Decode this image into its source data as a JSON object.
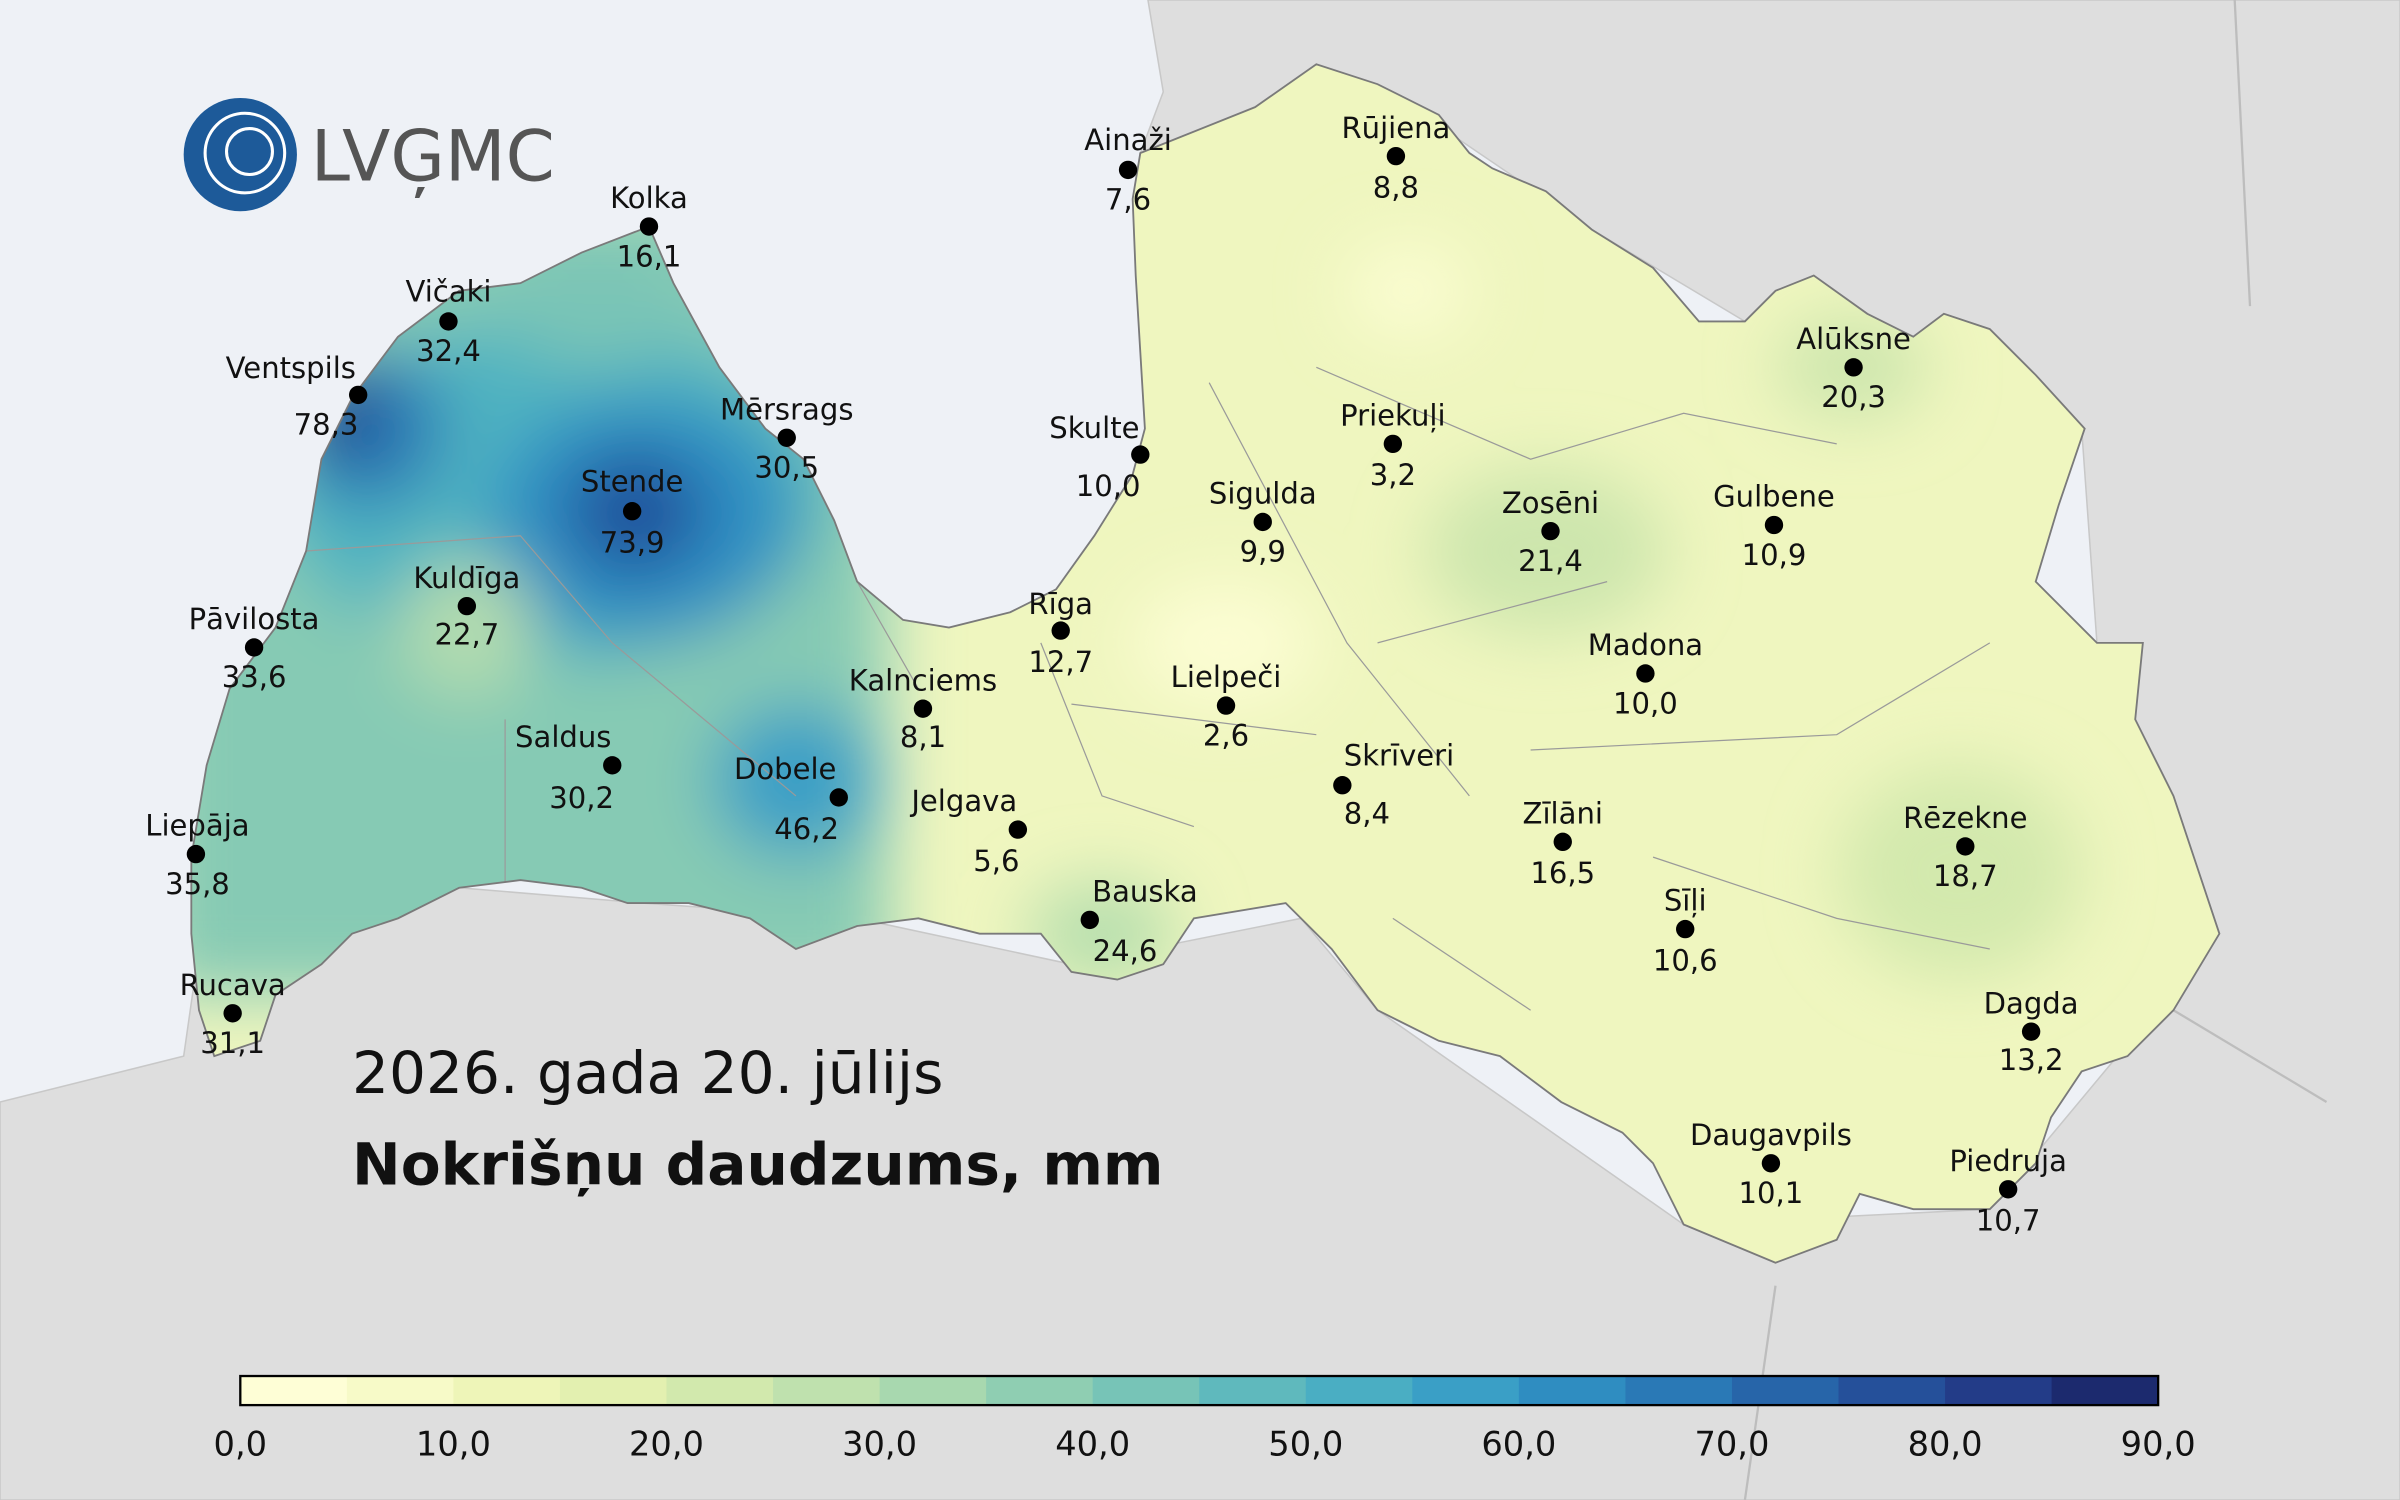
{
  "logo": {
    "text": "LVĢMC"
  },
  "title": "2026. gada 20. jūlijs",
  "subtitle": "Nokrišņu daudzums, mm",
  "stations": [
    {
      "name": "Kolka",
      "value": "16,1"
    },
    {
      "name": "Vičaki",
      "value": "32,4"
    },
    {
      "name": "Ventspils",
      "value": "78,3"
    },
    {
      "name": "Mērsrags",
      "value": "30,5"
    },
    {
      "name": "Stende",
      "value": "73,9"
    },
    {
      "name": "Kuldīga",
      "value": "22,7"
    },
    {
      "name": "Pāvilosta",
      "value": "33,6"
    },
    {
      "name": "Saldus",
      "value": "30,2"
    },
    {
      "name": "Dobele",
      "value": "46,2"
    },
    {
      "name": "Liepāja",
      "value": "35,8"
    },
    {
      "name": "Rucava",
      "value": "31,1"
    },
    {
      "name": "Ainaži",
      "value": "7,6"
    },
    {
      "name": "Rūjiena",
      "value": "8,8"
    },
    {
      "name": "Skulte",
      "value": "10,0"
    },
    {
      "name": "Priekuļi",
      "value": "3,2"
    },
    {
      "name": "Sigulda",
      "value": "9,9"
    },
    {
      "name": "Zosēni",
      "value": "21,4"
    },
    {
      "name": "Gulbene",
      "value": "10,9"
    },
    {
      "name": "Alūksne",
      "value": "20,3"
    },
    {
      "name": "Rīga",
      "value": "12,7"
    },
    {
      "name": "Kalnciems",
      "value": "8,1"
    },
    {
      "name": "Jelgava",
      "value": "5,6"
    },
    {
      "name": "Lielpeči",
      "value": "2,6"
    },
    {
      "name": "Skrīveri",
      "value": "8,4"
    },
    {
      "name": "Madona",
      "value": "10,0"
    },
    {
      "name": "Bauska",
      "value": "24,6"
    },
    {
      "name": "Zīlāni",
      "value": "16,5"
    },
    {
      "name": "Sīļi",
      "value": "10,6"
    },
    {
      "name": "Rēzekne",
      "value": "18,7"
    },
    {
      "name": "Dagda",
      "value": "13,2"
    },
    {
      "name": "Daugavpils",
      "value": "10,1"
    },
    {
      "name": "Piedruja",
      "value": "10,7"
    }
  ],
  "colorbar": {
    "colors": [
      "#fefed6",
      "#f7fac8",
      "#eef5b8",
      "#e3f0b0",
      "#d2e9ad",
      "#bfe1ae",
      "#a8d8af",
      "#8fceb2",
      "#77c4b7",
      "#5fb9bd",
      "#4aaec3",
      "#3a9fc6",
      "#2f8dc1",
      "#2a79b6",
      "#2765a9",
      "#25509a",
      "#233c88",
      "#1c2a6e"
    ],
    "ticks": [
      "0,0",
      "10,0",
      "20,0",
      "30,0",
      "40,0",
      "50,0",
      "60,0",
      "70,0",
      "80,0",
      "90,0"
    ]
  }
}
